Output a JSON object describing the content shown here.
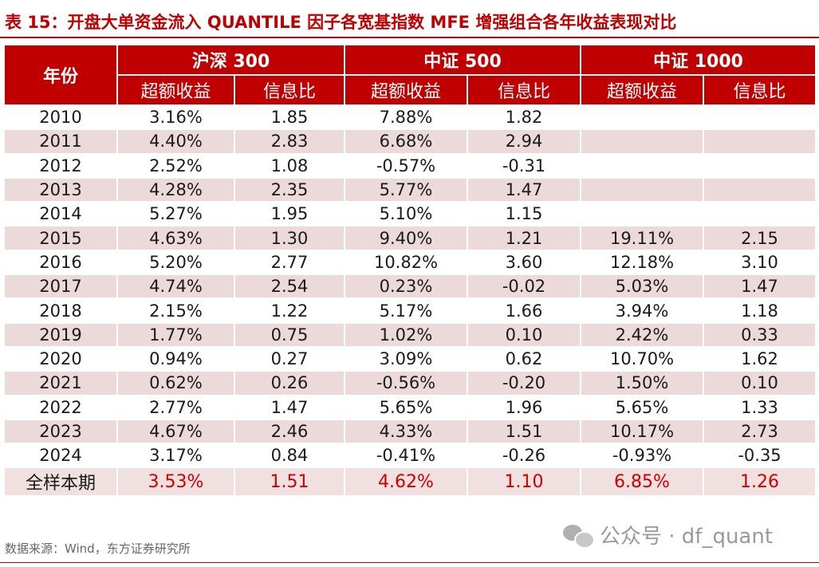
{
  "title": "表 15：开盘大单资金流入 QUANTILE 因子各宽基指数 MFE 增强组合各年收益表现对比",
  "header": {
    "year_label": "年份",
    "groups": [
      "沪深 300",
      "中证 500",
      "中证 1000"
    ],
    "sub": [
      "超额收益",
      "信息比",
      "超额收益",
      "信息比",
      "超额收益",
      "信息比"
    ]
  },
  "rows": [
    [
      "2010",
      "3.16%",
      "1.85",
      "7.88%",
      "1.82",
      "",
      ""
    ],
    [
      "2011",
      "4.40%",
      "2.83",
      "6.68%",
      "2.94",
      "",
      ""
    ],
    [
      "2012",
      "2.52%",
      "1.08",
      "-0.57%",
      "-0.31",
      "",
      ""
    ],
    [
      "2013",
      "4.28%",
      "2.35",
      "5.77%",
      "1.47",
      "",
      ""
    ],
    [
      "2014",
      "5.27%",
      "1.95",
      "5.10%",
      "1.15",
      "",
      ""
    ],
    [
      "2015",
      "4.63%",
      "1.30",
      "9.40%",
      "1.21",
      "19.11%",
      "2.15"
    ],
    [
      "2016",
      "5.20%",
      "2.77",
      "10.82%",
      "3.60",
      "12.18%",
      "3.10"
    ],
    [
      "2017",
      "4.74%",
      "2.54",
      "0.23%",
      "-0.02",
      "5.03%",
      "1.47"
    ],
    [
      "2018",
      "2.15%",
      "1.22",
      "5.17%",
      "1.66",
      "3.94%",
      "1.18"
    ],
    [
      "2019",
      "1.77%",
      "0.75",
      "1.02%",
      "0.10",
      "2.42%",
      "0.33"
    ],
    [
      "2020",
      "0.94%",
      "0.27",
      "3.09%",
      "0.62",
      "10.70%",
      "1.62"
    ],
    [
      "2021",
      "0.62%",
      "0.26",
      "-0.56%",
      "-0.20",
      "1.50%",
      "0.10"
    ],
    [
      "2022",
      "2.77%",
      "1.47",
      "5.65%",
      "1.96",
      "5.65%",
      "1.33"
    ],
    [
      "2023",
      "4.67%",
      "2.46",
      "4.33%",
      "1.51",
      "10.17%",
      "2.73"
    ],
    [
      "2024",
      "3.17%",
      "0.84",
      "-0.41%",
      "-0.26",
      "-0.93%",
      "-0.35"
    ]
  ],
  "total": [
    "全样本期",
    "3.53%",
    "1.51",
    "4.62%",
    "1.10",
    "6.85%",
    "1.26"
  ],
  "source": "数据来源：Wind，东方证券研究所",
  "watermark": "公众号 · df_quant",
  "colors": {
    "accent": "#c00000",
    "stripe": "#ecd9d9",
    "highlight": "#d00000"
  }
}
